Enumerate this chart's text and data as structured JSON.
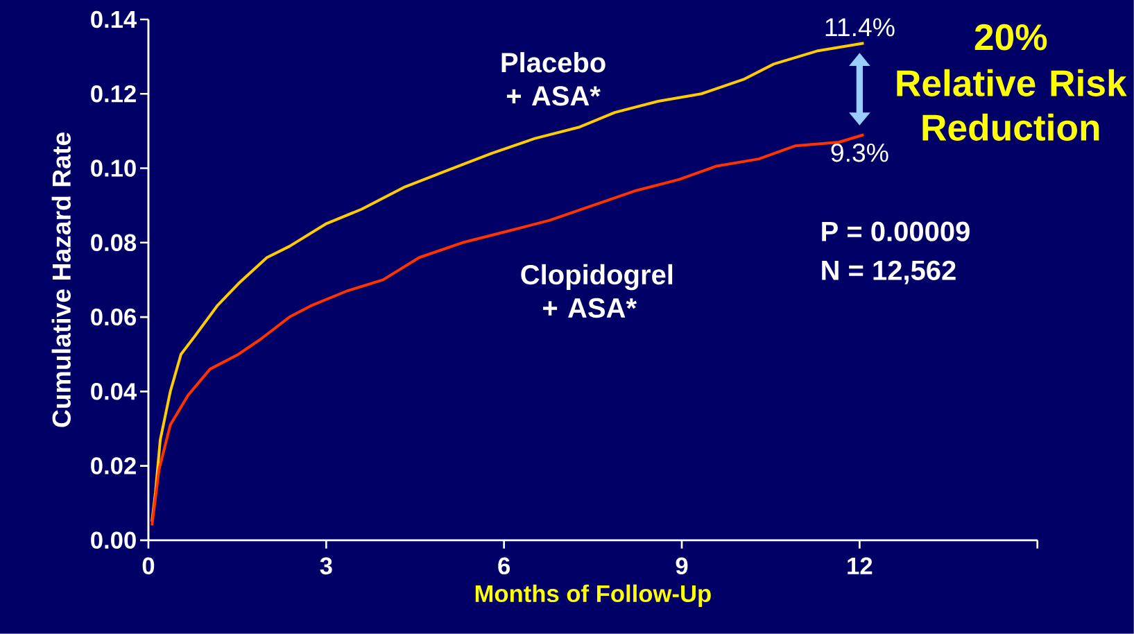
{
  "chart_data": {
    "type": "line",
    "xlabel": "Months of Follow-Up",
    "ylabel": "Cumulative Hazard Rate",
    "xlim": [
      0,
      15
    ],
    "ylim": [
      0,
      0.14
    ],
    "xticks": [
      0,
      3,
      6,
      9,
      12,
      {
        "value": 15,
        "label": null
      }
    ],
    "yticks": [
      {
        "value": 0,
        "label": "0.00"
      },
      {
        "value": 0.02,
        "label": "0.02"
      },
      {
        "value": 0.04,
        "label": "0.04"
      },
      {
        "value": 0.06,
        "label": "0.06"
      },
      {
        "value": 0.08,
        "label": "0.08"
      },
      {
        "value": 0.1,
        "label": "0.10"
      },
      {
        "value": 0.12,
        "label": "0.12"
      },
      {
        "value": 0.14,
        "label": "0.14"
      }
    ],
    "series": [
      {
        "name": "Placebo + ASA*",
        "color": "#ffcc00",
        "x": [
          0.06,
          0.12,
          0.2,
          0.37,
          0.55,
          0.79,
          1.16,
          1.52,
          2.0,
          2.38,
          2.99,
          3.6,
          4.33,
          5.06,
          5.79,
          6.52,
          7.26,
          7.87,
          8.6,
          9.33,
          10.06,
          10.55,
          11.28,
          12.07
        ],
        "values": [
          0.005,
          0.013,
          0.027,
          0.04,
          0.05,
          0.055,
          0.063,
          0.069,
          0.076,
          0.079,
          0.085,
          0.089,
          0.095,
          0.0995,
          0.104,
          0.108,
          0.111,
          0.115,
          0.118,
          0.12,
          0.124,
          0.128,
          0.1315,
          0.1336
        ]
      },
      {
        "name": "Clopidogrel + ASA*",
        "color": "#ff3300",
        "x": [
          0.06,
          0.18,
          0.37,
          0.67,
          1.04,
          1.52,
          1.89,
          2.38,
          2.74,
          3.35,
          3.96,
          4.57,
          5.3,
          6.04,
          6.77,
          7.5,
          8.23,
          8.96,
          9.57,
          10.3,
          10.91,
          11.65,
          12.07
        ],
        "values": [
          0.004,
          0.019,
          0.031,
          0.039,
          0.046,
          0.05,
          0.054,
          0.06,
          0.063,
          0.067,
          0.07,
          0.076,
          0.08,
          0.083,
          0.086,
          0.09,
          0.094,
          0.097,
          0.1005,
          0.1025,
          0.106,
          0.107,
          0.109
        ]
      }
    ],
    "annotations": [
      {
        "text": "11.4%",
        "x": 12,
        "y": 0.1336
      },
      {
        "text": "9.3%",
        "x": 12,
        "y": 0.109
      },
      "20%",
      "Relative Risk Reduction",
      "P = 0.00009",
      "N = 12,562"
    ]
  }
}
